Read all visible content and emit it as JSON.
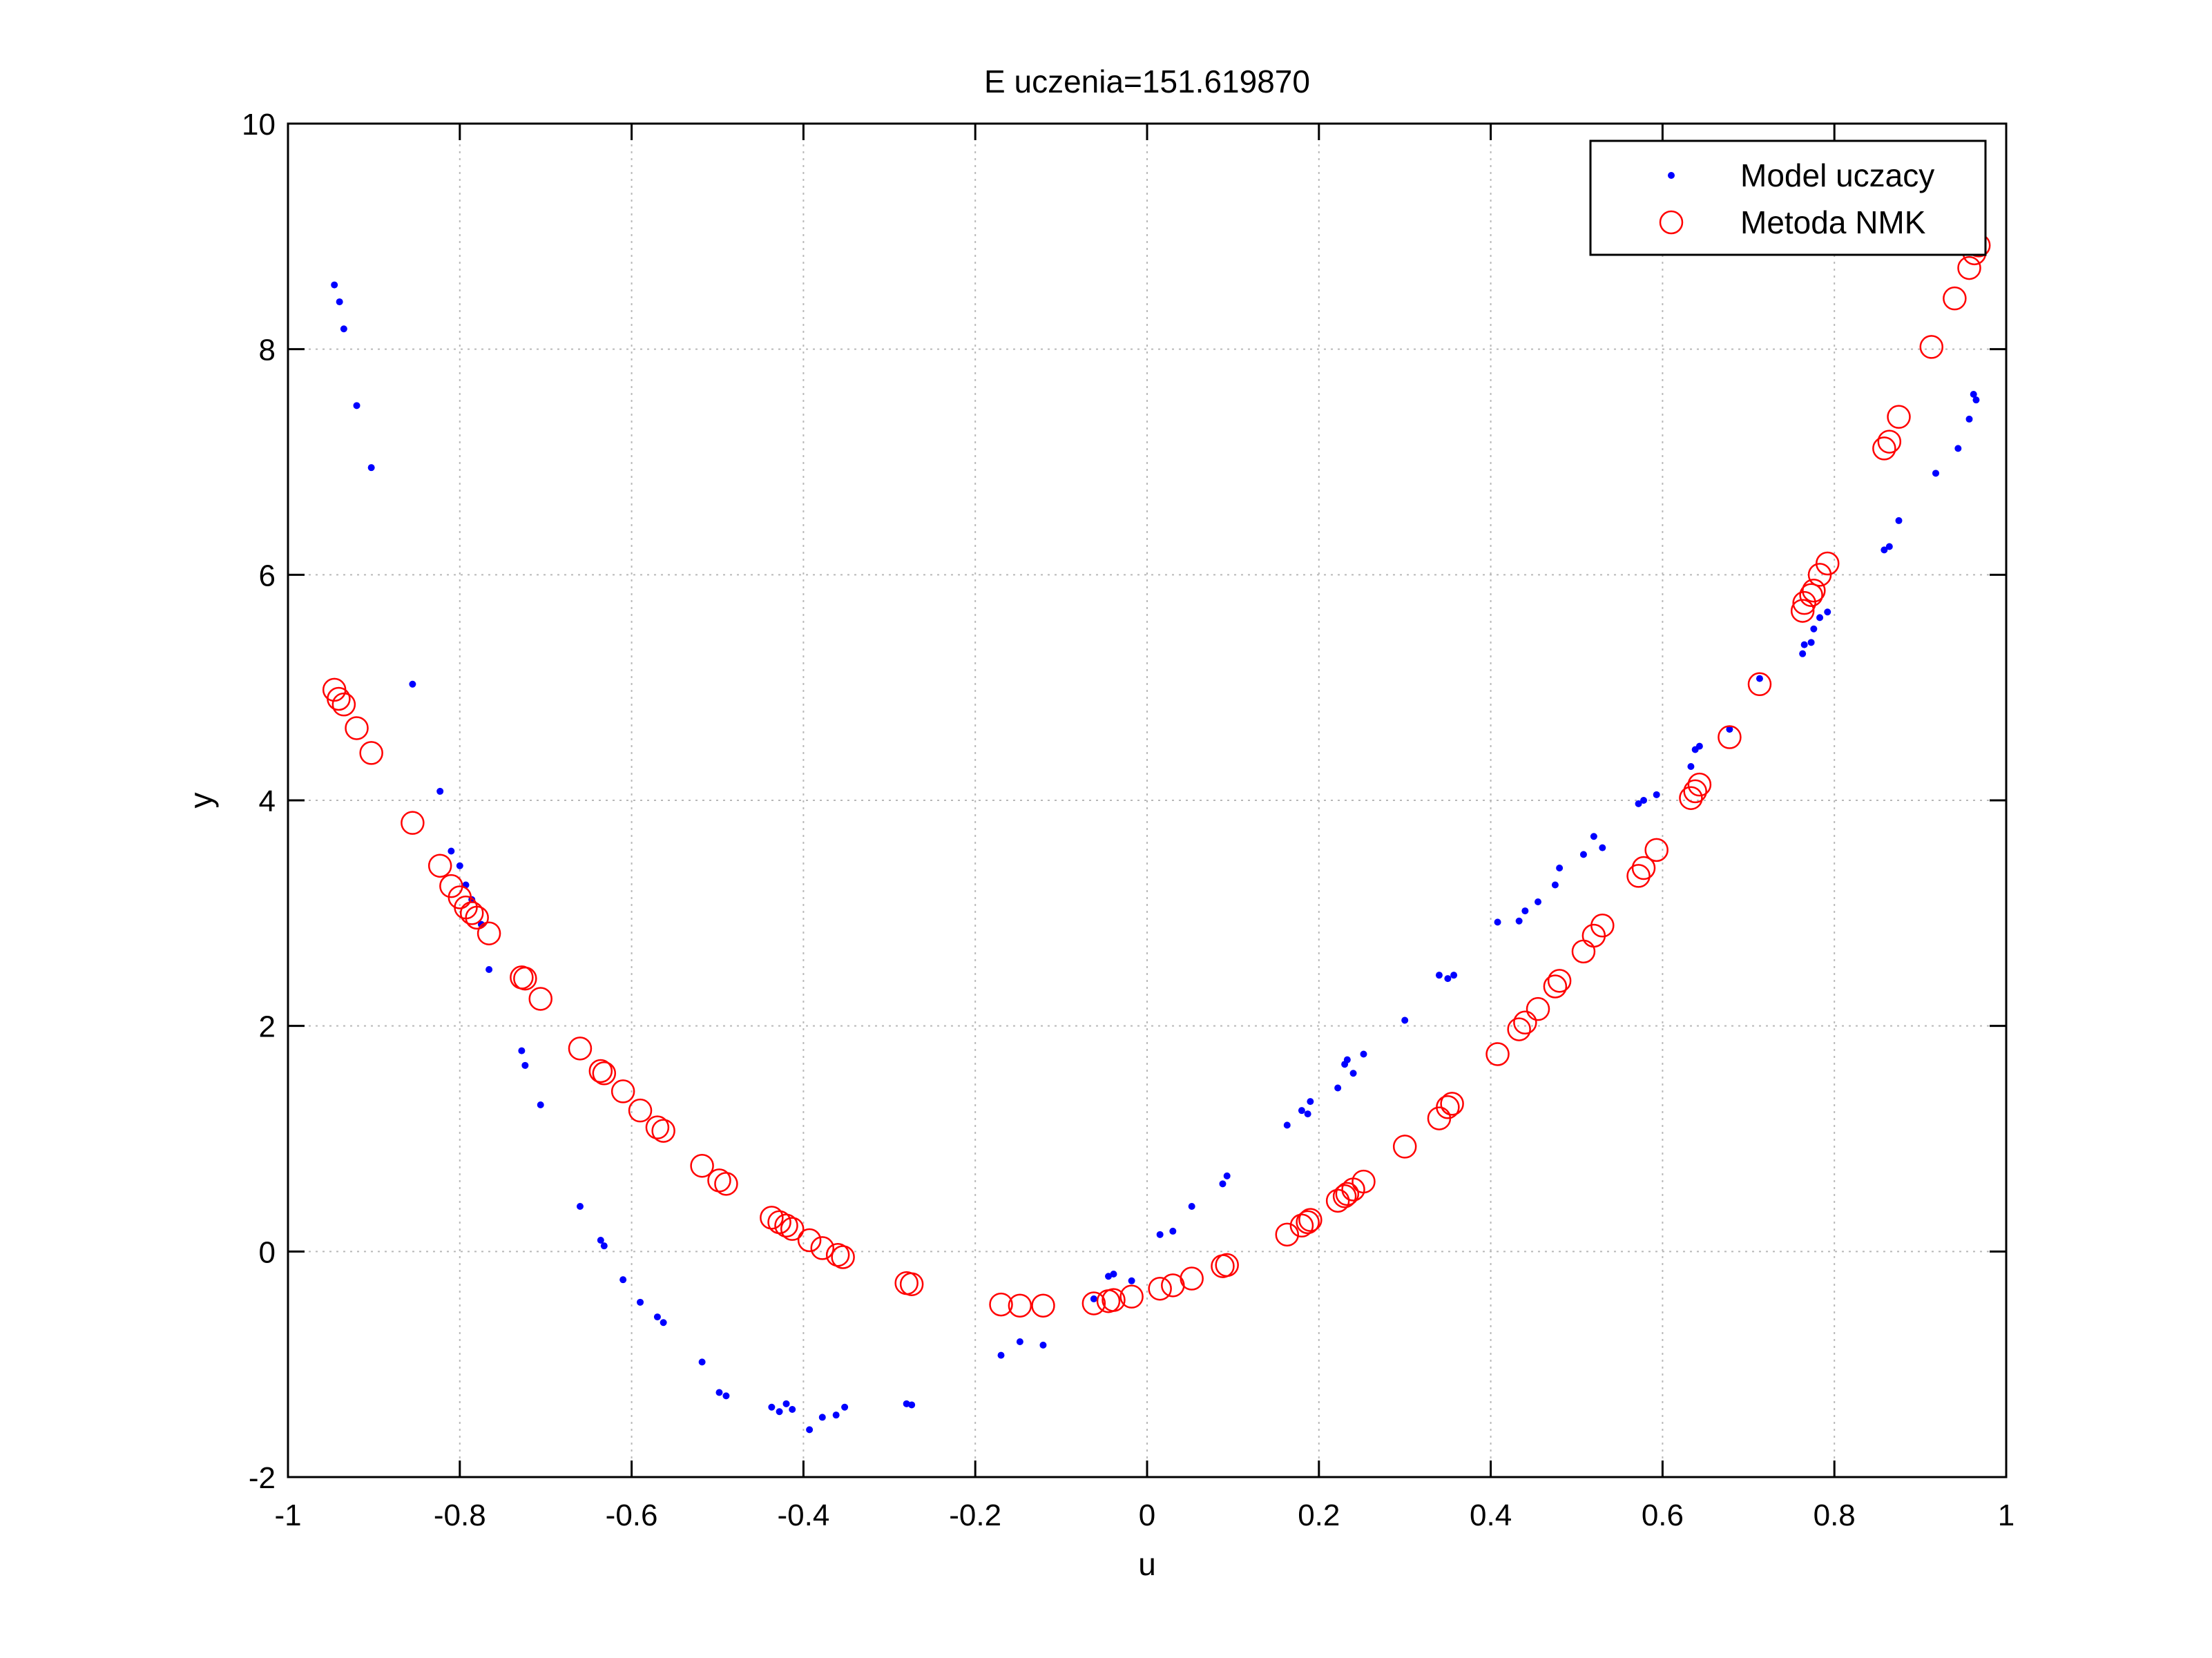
{
  "chart_data": {
    "type": "scatter",
    "title": "E uczenia=151.619870",
    "xlabel": "u",
    "ylabel": "y",
    "xlim": [
      -1,
      1
    ],
    "ylim": [
      -2,
      10
    ],
    "xticks": [
      -1,
      -0.8,
      -0.6,
      -0.4,
      -0.2,
      0,
      0.2,
      0.4,
      0.6,
      0.8,
      1
    ],
    "yticks": [
      -2,
      0,
      2,
      4,
      6,
      8,
      10
    ],
    "xtick_labels": [
      "-1",
      "-0.8",
      "-0.6",
      "-0.4",
      "-0.2",
      "0",
      "0.2",
      "0.4",
      "0.6",
      "0.8",
      "1"
    ],
    "ytick_labels": [
      "-2",
      "0",
      "2",
      "4",
      "6",
      "8",
      "10"
    ],
    "grid": true,
    "legend_position": "top-right",
    "series": [
      {
        "name": "Model uczacy",
        "marker": "dot",
        "color": "#0000ff",
        "points": [
          [
            -0.946,
            8.57
          ],
          [
            -0.94,
            8.42
          ],
          [
            -0.935,
            8.18
          ],
          [
            -0.92,
            7.5
          ],
          [
            -0.903,
            6.95
          ],
          [
            -0.855,
            5.03
          ],
          [
            -0.823,
            4.08
          ],
          [
            -0.81,
            3.55
          ],
          [
            -0.8,
            3.42
          ],
          [
            -0.793,
            3.25
          ],
          [
            -0.786,
            3.12
          ],
          [
            -0.775,
            2.9
          ],
          [
            -0.766,
            2.5
          ],
          [
            -0.728,
            1.78
          ],
          [
            -0.724,
            1.65
          ],
          [
            -0.706,
            1.3
          ],
          [
            -0.66,
            0.4
          ],
          [
            -0.636,
            0.1
          ],
          [
            -0.632,
            0.05
          ],
          [
            -0.61,
            -0.25
          ],
          [
            -0.59,
            -0.45
          ],
          [
            -0.57,
            -0.58
          ],
          [
            -0.563,
            -0.63
          ],
          [
            -0.518,
            -0.98
          ],
          [
            -0.498,
            -1.25
          ],
          [
            -0.49,
            -1.28
          ],
          [
            -0.437,
            -1.38
          ],
          [
            -0.428,
            -1.42
          ],
          [
            -0.42,
            -1.35
          ],
          [
            -0.413,
            -1.4
          ],
          [
            -0.393,
            -1.58
          ],
          [
            -0.378,
            -1.47
          ],
          [
            -0.362,
            -1.45
          ],
          [
            -0.352,
            -1.38
          ],
          [
            -0.28,
            -1.35
          ],
          [
            -0.274,
            -1.36
          ],
          [
            -0.17,
            -0.92
          ],
          [
            -0.148,
            -0.8
          ],
          [
            -0.121,
            -0.83
          ],
          [
            -0.062,
            -0.42
          ],
          [
            -0.045,
            -0.22
          ],
          [
            -0.039,
            -0.2
          ],
          [
            -0.018,
            -0.26
          ],
          [
            0.015,
            0.15
          ],
          [
            0.03,
            0.18
          ],
          [
            0.052,
            0.4
          ],
          [
            0.088,
            0.6
          ],
          [
            0.093,
            0.67
          ],
          [
            0.163,
            1.12
          ],
          [
            0.18,
            1.25
          ],
          [
            0.187,
            1.22
          ],
          [
            0.19,
            1.33
          ],
          [
            0.222,
            1.45
          ],
          [
            0.23,
            1.66
          ],
          [
            0.233,
            1.7
          ],
          [
            0.24,
            1.58
          ],
          [
            0.252,
            1.75
          ],
          [
            0.3,
            2.05
          ],
          [
            0.34,
            2.45
          ],
          [
            0.35,
            2.42
          ],
          [
            0.357,
            2.45
          ],
          [
            0.408,
            2.92
          ],
          [
            0.433,
            2.93
          ],
          [
            0.44,
            3.02
          ],
          [
            0.455,
            3.1
          ],
          [
            0.475,
            3.25
          ],
          [
            0.48,
            3.4
          ],
          [
            0.508,
            3.52
          ],
          [
            0.52,
            3.68
          ],
          [
            0.53,
            3.58
          ],
          [
            0.572,
            3.97
          ],
          [
            0.578,
            4.0
          ],
          [
            0.593,
            4.05
          ],
          [
            0.633,
            4.3
          ],
          [
            0.638,
            4.45
          ],
          [
            0.643,
            4.48
          ],
          [
            0.678,
            4.63
          ],
          [
            0.713,
            5.08
          ],
          [
            0.763,
            5.3
          ],
          [
            0.765,
            5.38
          ],
          [
            0.773,
            5.4
          ],
          [
            0.776,
            5.52
          ],
          [
            0.783,
            5.62
          ],
          [
            0.792,
            5.67
          ],
          [
            0.858,
            6.22
          ],
          [
            0.864,
            6.25
          ],
          [
            0.875,
            6.48
          ],
          [
            0.918,
            6.9
          ],
          [
            0.944,
            7.12
          ],
          [
            0.957,
            7.38
          ],
          [
            0.962,
            7.6
          ],
          [
            0.965,
            7.55
          ]
        ]
      },
      {
        "name": "Metoda NMK",
        "marker": "circle",
        "color": "#ff0000",
        "points": [
          [
            -0.946,
            4.98
          ],
          [
            -0.941,
            4.9
          ],
          [
            -0.935,
            4.85
          ],
          [
            -0.92,
            4.64
          ],
          [
            -0.903,
            4.42
          ],
          [
            -0.855,
            3.8
          ],
          [
            -0.823,
            3.42
          ],
          [
            -0.81,
            3.24
          ],
          [
            -0.8,
            3.14
          ],
          [
            -0.793,
            3.05
          ],
          [
            -0.786,
            3.0
          ],
          [
            -0.78,
            2.96
          ],
          [
            -0.766,
            2.82
          ],
          [
            -0.728,
            2.43
          ],
          [
            -0.724,
            2.42
          ],
          [
            -0.706,
            2.24
          ],
          [
            -0.66,
            1.8
          ],
          [
            -0.636,
            1.6
          ],
          [
            -0.632,
            1.58
          ],
          [
            -0.61,
            1.42
          ],
          [
            -0.59,
            1.25
          ],
          [
            -0.57,
            1.1
          ],
          [
            -0.563,
            1.07
          ],
          [
            -0.518,
            0.76
          ],
          [
            -0.498,
            0.63
          ],
          [
            -0.49,
            0.6
          ],
          [
            -0.437,
            0.3
          ],
          [
            -0.428,
            0.26
          ],
          [
            -0.42,
            0.23
          ],
          [
            -0.413,
            0.2
          ],
          [
            -0.393,
            0.1
          ],
          [
            -0.378,
            0.03
          ],
          [
            -0.36,
            -0.03
          ],
          [
            -0.354,
            -0.05
          ],
          [
            -0.28,
            -0.28
          ],
          [
            -0.274,
            -0.29
          ],
          [
            -0.17,
            -0.47
          ],
          [
            -0.148,
            -0.48
          ],
          [
            -0.121,
            -0.48
          ],
          [
            -0.062,
            -0.46
          ],
          [
            -0.045,
            -0.44
          ],
          [
            -0.039,
            -0.43
          ],
          [
            -0.018,
            -0.4
          ],
          [
            0.015,
            -0.33
          ],
          [
            0.03,
            -0.3
          ],
          [
            0.052,
            -0.24
          ],
          [
            0.088,
            -0.13
          ],
          [
            0.093,
            -0.12
          ],
          [
            0.163,
            0.15
          ],
          [
            0.18,
            0.23
          ],
          [
            0.187,
            0.26
          ],
          [
            0.19,
            0.28
          ],
          [
            0.222,
            0.45
          ],
          [
            0.23,
            0.49
          ],
          [
            0.233,
            0.51
          ],
          [
            0.24,
            0.55
          ],
          [
            0.252,
            0.62
          ],
          [
            0.3,
            0.93
          ],
          [
            0.34,
            1.18
          ],
          [
            0.35,
            1.28
          ],
          [
            0.355,
            1.31
          ],
          [
            0.408,
            1.75
          ],
          [
            0.433,
            1.97
          ],
          [
            0.44,
            2.03
          ],
          [
            0.455,
            2.15
          ],
          [
            0.475,
            2.35
          ],
          [
            0.48,
            2.4
          ],
          [
            0.508,
            2.66
          ],
          [
            0.52,
            2.8
          ],
          [
            0.53,
            2.89
          ],
          [
            0.572,
            3.33
          ],
          [
            0.578,
            3.4
          ],
          [
            0.593,
            3.56
          ],
          [
            0.633,
            4.02
          ],
          [
            0.638,
            4.08
          ],
          [
            0.643,
            4.14
          ],
          [
            0.678,
            4.56
          ],
          [
            0.713,
            5.03
          ],
          [
            0.763,
            5.68
          ],
          [
            0.765,
            5.75
          ],
          [
            0.773,
            5.82
          ],
          [
            0.776,
            5.86
          ],
          [
            0.783,
            6.0
          ],
          [
            0.792,
            6.1
          ],
          [
            0.858,
            7.12
          ],
          [
            0.864,
            7.18
          ],
          [
            0.875,
            7.4
          ],
          [
            0.913,
            8.02
          ],
          [
            0.94,
            8.45
          ],
          [
            0.957,
            8.72
          ],
          [
            0.963,
            8.85
          ],
          [
            0.968,
            8.92
          ]
        ]
      }
    ]
  }
}
